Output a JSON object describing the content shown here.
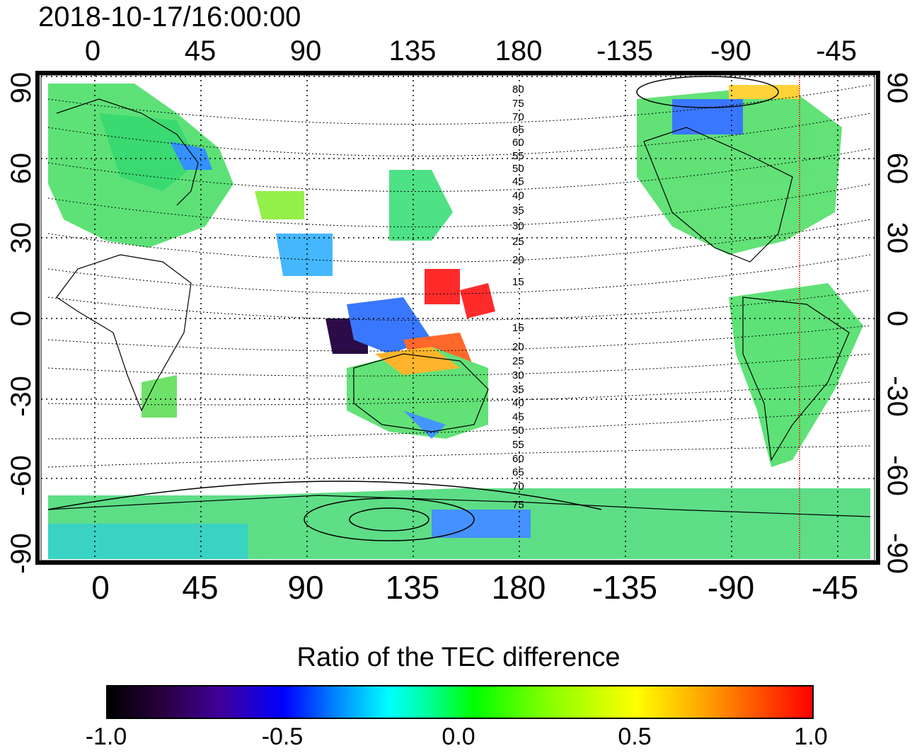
{
  "timestamp": "2018-10-17/16:00:00",
  "lon_labels": [
    "0",
    "45",
    "90",
    "135",
    "180",
    "-135",
    "-90",
    "-45"
  ],
  "lat_labels": [
    "90",
    "60",
    "30",
    "0",
    "-30",
    "-60",
    "-90"
  ],
  "contour_labels": [
    "80",
    "75",
    "70",
    "65",
    "60",
    "55",
    "50",
    "45",
    "40",
    "35",
    "30",
    "25",
    "20",
    "15",
    "15",
    "20",
    "25",
    "30",
    "35",
    "40",
    "45",
    "50",
    "55",
    "60",
    "65",
    "70",
    "75"
  ],
  "colorbar": {
    "title": "Ratio of the TEC difference",
    "ticks": [
      "-1.0",
      "-0.5",
      "0.0",
      "0.5",
      "1.0"
    ]
  },
  "colors": {
    "ocean": "#ffffff",
    "frame": "#000000",
    "marker_line": "#ff0000"
  }
}
